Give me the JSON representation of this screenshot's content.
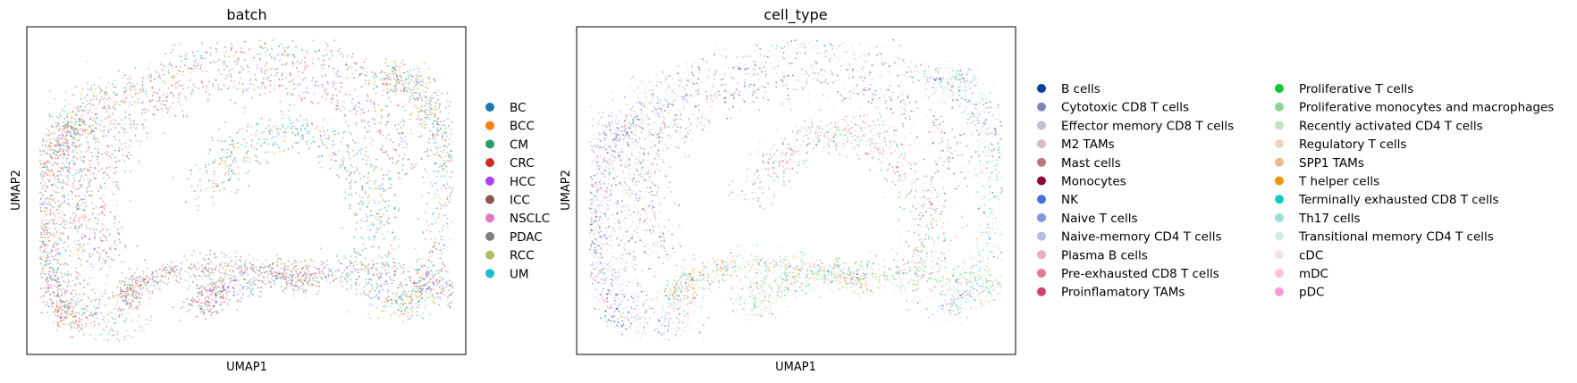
{
  "chart_data": [
    {
      "type": "scatter",
      "title": "batch",
      "xlabel": "UMAP1",
      "ylabel": "UMAP2",
      "grid": false,
      "legend_placement": "right",
      "legend_columns": 1,
      "series": [
        {
          "name": "BC",
          "color": "#1f77b4"
        },
        {
          "name": "BCC",
          "color": "#ff7f0e"
        },
        {
          "name": "CM",
          "color": "#279e68"
        },
        {
          "name": "CRC",
          "color": "#d62728"
        },
        {
          "name": "HCC",
          "color": "#aa40fc"
        },
        {
          "name": "ICC",
          "color": "#8c564b"
        },
        {
          "name": "NSCLC",
          "color": "#e377c2"
        },
        {
          "name": "PDAC",
          "color": "#7f7f7f"
        },
        {
          "name": "RCC",
          "color": "#b5bd61"
        },
        {
          "name": "UM",
          "color": "#17becf"
        }
      ]
    },
    {
      "type": "scatter",
      "title": "cell_type",
      "xlabel": "UMAP1",
      "ylabel": "UMAP2",
      "grid": false,
      "legend_placement": "right",
      "legend_columns": 2,
      "series": [
        {
          "name": "B cells",
          "color": "#023fa5"
        },
        {
          "name": "Cytotoxic CD8 T cells",
          "color": "#7d87b9"
        },
        {
          "name": "Effector memory CD8 T cells",
          "color": "#bec1d4"
        },
        {
          "name": "M2 TAMs",
          "color": "#d6bcc0"
        },
        {
          "name": "Mast cells",
          "color": "#bb7784"
        },
        {
          "name": "Monocytes",
          "color": "#8e063b"
        },
        {
          "name": "NK",
          "color": "#4a6fe3"
        },
        {
          "name": "Naive T cells",
          "color": "#8595e1"
        },
        {
          "name": "Naive-memory CD4 T cells",
          "color": "#b5bbe3"
        },
        {
          "name": "Plasma B cells",
          "color": "#e6afb9"
        },
        {
          "name": "Pre-exhausted CD8 T cells",
          "color": "#e07b91"
        },
        {
          "name": "Proinflamatory TAMs",
          "color": "#d33f6a"
        },
        {
          "name": "Proliferative T cells",
          "color": "#11c638"
        },
        {
          "name": "Proliferative monocytes and macrophages",
          "color": "#8dd593"
        },
        {
          "name": "Recently activated CD4 T cells",
          "color": "#c6dec7"
        },
        {
          "name": "Regulatory T cells",
          "color": "#ead3c6"
        },
        {
          "name": "SPP1 TAMs",
          "color": "#f0b98d"
        },
        {
          "name": "T helper cells",
          "color": "#ef9708"
        },
        {
          "name": "Terminally exhausted CD8 T cells",
          "color": "#0fcfc0"
        },
        {
          "name": "Th17 cells",
          "color": "#9cded6"
        },
        {
          "name": "Transitional memory CD4 T cells",
          "color": "#d5eae7"
        },
        {
          "name": "cDC",
          "color": "#f3e1eb"
        },
        {
          "name": "mDC",
          "color": "#f6c4e1"
        },
        {
          "name": "pDC",
          "color": "#f79cd4"
        }
      ]
    }
  ]
}
